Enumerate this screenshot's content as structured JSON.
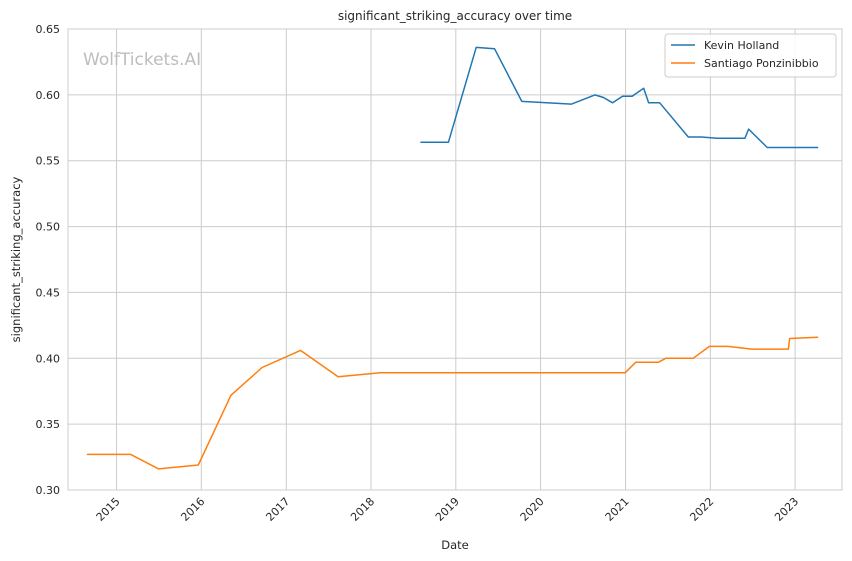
{
  "chart_data": {
    "type": "line",
    "title": "significant_striking_accuracy over time",
    "xlabel": "Date",
    "ylabel": "significant_striking_accuracy",
    "watermark": "WolfTickets.AI",
    "xlim": [
      "2014-06-06",
      "2023-07-22"
    ],
    "ylim": [
      0.3,
      0.65
    ],
    "x_ticks": [
      "2015-01-01",
      "2016-01-01",
      "2017-01-01",
      "2018-01-01",
      "2019-01-01",
      "2020-01-01",
      "2021-01-01",
      "2022-01-01",
      "2023-01-01"
    ],
    "x_tick_labels": [
      "2015",
      "2016",
      "2017",
      "2018",
      "2019",
      "2020",
      "2021",
      "2022",
      "2023"
    ],
    "y_ticks": [
      0.3,
      0.35,
      0.4,
      0.45,
      0.5,
      0.55,
      0.6,
      0.65
    ],
    "y_tick_labels": [
      "0.30",
      "0.35",
      "0.40",
      "0.45",
      "0.50",
      "0.55",
      "0.60",
      "0.65"
    ],
    "grid": true,
    "legend_position": "top-right",
    "series": [
      {
        "name": "Kevin Holland",
        "color": "#1f77b4",
        "x": [
          "2018-08-04",
          "2018-11-30",
          "2019-03-30",
          "2019-06-17",
          "2019-10-12",
          "2020-05-13",
          "2020-08-22",
          "2020-09-28",
          "2020-11-06",
          "2020-12-19",
          "2021-01-29",
          "2021-03-20",
          "2021-04-10",
          "2021-05-28",
          "2021-09-28",
          "2021-11-24",
          "2022-01-29",
          "2022-04-02",
          "2022-05-30",
          "2022-06-15",
          "2022-09-03",
          "2022-12-01",
          "2023-04-08"
        ],
        "y": [
          0.564,
          0.564,
          0.636,
          0.635,
          0.595,
          0.593,
          0.6,
          0.598,
          0.594,
          0.599,
          0.599,
          0.605,
          0.594,
          0.594,
          0.568,
          0.568,
          0.567,
          0.567,
          0.567,
          0.574,
          0.56,
          0.56,
          0.56
        ]
      },
      {
        "name": "Santiago Ponzinibbio",
        "color": "#ff7f0e",
        "x": [
          "2014-08-29",
          "2015-03-03",
          "2015-07-01",
          "2015-12-19",
          "2016-05-08",
          "2016-09-19",
          "2017-03-03",
          "2017-08-12",
          "2018-02-10",
          "2018-07-29",
          "2019-04-06",
          "2020-05-24",
          "2020-12-30",
          "2021-02-14",
          "2021-05-23",
          "2021-06-23",
          "2021-10-19",
          "2021-12-28",
          "2022-03-18",
          "2022-06-29",
          "2022-12-03",
          "2022-12-09",
          "2023-04-08"
        ],
        "y": [
          0.327,
          0.327,
          0.316,
          0.319,
          0.372,
          0.393,
          0.406,
          0.386,
          0.389,
          0.389,
          0.389,
          0.389,
          0.389,
          0.397,
          0.397,
          0.4,
          0.4,
          0.409,
          0.409,
          0.407,
          0.407,
          0.415,
          0.416
        ]
      }
    ]
  }
}
